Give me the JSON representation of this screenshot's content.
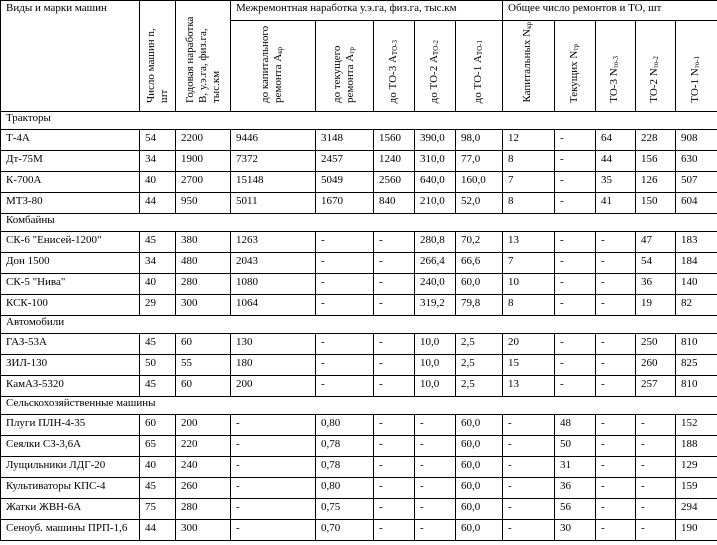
{
  "header": {
    "type_col": "Виды и марки машин",
    "count_col": "Число машин n, шт",
    "annual_col": "Годовая наработка B, у.э.га, физ.га, тыс.км",
    "interrepair_group": "Межремонтная наработка у.э.га, физ.га, тыс.км",
    "interrepair_cols": [
      {
        "label": "до капитального ремонта А",
        "sub": "кр"
      },
      {
        "label": "до текущего ремонта А",
        "sub": "тр"
      },
      {
        "label": "до ТО-3 А",
        "sub": "ТО-3"
      },
      {
        "label": "до ТО-2 А",
        "sub": "ТО-2"
      },
      {
        "label": "до ТО-1 А",
        "sub": "ТО-1"
      }
    ],
    "total_group": "Общее число ремонтов и ТО, шт",
    "total_cols": [
      {
        "label": "Капитальных N",
        "sub": "кр"
      },
      {
        "label": "Текущих N",
        "sub": "тр"
      },
      {
        "label": "ТО-3 N",
        "sub": "то-3"
      },
      {
        "label": "ТО-2 N",
        "sub": "то-2"
      },
      {
        "label": "ТО-1 N",
        "sub": "то-1"
      }
    ]
  },
  "groups": [
    {
      "name": "Тракторы",
      "rows": [
        [
          "Т-4А",
          "54",
          "2200",
          "9446",
          "3148",
          "1560",
          "390,0",
          "98,0",
          "12",
          "-",
          "64",
          "228",
          "908"
        ],
        [
          "Дт-75М",
          "34",
          "1900",
          "7372",
          "2457",
          "1240",
          "310,0",
          "77,0",
          "8",
          "-",
          "44",
          "156",
          "630"
        ],
        [
          "К-700А",
          "40",
          "2700",
          "15148",
          "5049",
          "2560",
          "640,0",
          "160,0",
          "7",
          "-",
          "35",
          "126",
          "507"
        ],
        [
          "МТЗ-80",
          "44",
          "950",
          "5011",
          "1670",
          "840",
          "210,0",
          "52,0",
          "8",
          "-",
          "41",
          "150",
          "604"
        ]
      ]
    },
    {
      "name": "Комбайны",
      "rows": [
        [
          "СК-6 \"Енисей-1200\"",
          "45",
          "380",
          "1263",
          "-",
          "-",
          "280,8",
          "70,2",
          "13",
          "-",
          "-",
          "47",
          "183"
        ],
        [
          "Дон 1500",
          "34",
          "480",
          "2043",
          "-",
          "-",
          "266,4",
          "66,6",
          "7",
          "-",
          "-",
          "54",
          "184"
        ],
        [
          "СК-5 \"Нива\"",
          "40",
          "280",
          "1080",
          "-",
          "-",
          "240,0",
          "60,0",
          "10",
          "-",
          "-",
          "36",
          "140"
        ],
        [
          "КСК-100",
          "29",
          "300",
          "1064",
          "-",
          "-",
          "319,2",
          "79,8",
          "8",
          "-",
          "-",
          "19",
          "82"
        ]
      ]
    },
    {
      "name": "Автомобили",
      "rows": [
        [
          "ГАЗ-53А",
          "45",
          "60",
          "130",
          "-",
          "-",
          "10,0",
          "2,5",
          "20",
          "-",
          "-",
          "250",
          "810"
        ],
        [
          "ЗИЛ-130",
          "50",
          "55",
          "180",
          "-",
          "-",
          "10,0",
          "2,5",
          "15",
          "-",
          "-",
          "260",
          "825"
        ],
        [
          "КамАЗ-5320",
          "45",
          "60",
          "200",
          "-",
          "-",
          "10,0",
          "2,5",
          "13",
          "-",
          "-",
          "257",
          "810"
        ]
      ]
    },
    {
      "name": "Сельскохозяйственные машины",
      "rows": [
        [
          "Плуги ПЛН-4-35",
          "60",
          "200",
          "-",
          "0,80",
          "-",
          "-",
          "60,0",
          "-",
          "48",
          "-",
          "-",
          "152"
        ],
        [
          "Сеялки СЗ-3,6А",
          "65",
          "220",
          "-",
          "0,78",
          "-",
          "-",
          "60,0",
          "-",
          "50",
          "-",
          "-",
          "188"
        ],
        [
          "Лущильники ЛДГ-20",
          "40",
          "240",
          "-",
          "0,78",
          "-",
          "-",
          "60,0",
          "-",
          "31",
          "-",
          "-",
          "129"
        ],
        [
          "Культиваторы КПС-4",
          "45",
          "260",
          "-",
          "0,80",
          "-",
          "-",
          "60,0",
          "-",
          "36",
          "-",
          "-",
          "159"
        ],
        [
          "Жатки ЖВН-6А",
          "75",
          "280",
          "-",
          "0,75",
          "-",
          "-",
          "60,0",
          "-",
          "56",
          "-",
          "-",
          "294"
        ],
        [
          "Сеноуб. машины ПРП-1,6",
          "44",
          "300",
          "-",
          "0,70",
          "-",
          "-",
          "60,0",
          "-",
          "30",
          "-",
          "-",
          "190"
        ]
      ]
    }
  ]
}
